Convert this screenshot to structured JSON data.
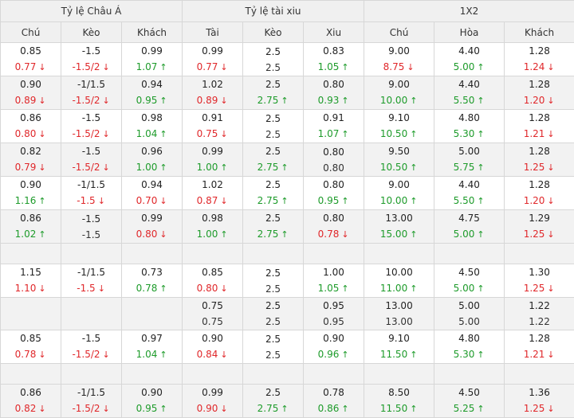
{
  "groups": [
    "Tỷ lệ Châu Á",
    "Tỷ lệ tài xiu",
    "1X2"
  ],
  "columns": [
    "Chú",
    "Kèo",
    "Khách",
    "Tài",
    "Kèo",
    "Xiu",
    "Chú",
    "Hòa",
    "Khách"
  ],
  "colors": {
    "up": "#1d9b2a",
    "down": "#e0272a",
    "neutral": "#333333",
    "header_bg": "#f0f0f0",
    "alt_row_bg": "#f2f2f2"
  },
  "rows": [
    {
      "type": "data",
      "cells": [
        {
          "open": "0.85",
          "cur": "0.77",
          "dir": "down"
        },
        {
          "open": "-1.5",
          "cur": "-1.5/2",
          "dir": "down"
        },
        {
          "open": "0.99",
          "cur": "1.07",
          "dir": "up"
        },
        {
          "open": "0.99",
          "cur": "0.77",
          "dir": "down"
        },
        {
          "open": "2.5",
          "cur": "2.5",
          "dir": "none"
        },
        {
          "open": "0.83",
          "cur": "1.05",
          "dir": "up"
        },
        {
          "open": "9.00",
          "cur": "8.75",
          "dir": "down"
        },
        {
          "open": "4.40",
          "cur": "5.00",
          "dir": "up"
        },
        {
          "open": "1.28",
          "cur": "1.24",
          "dir": "down"
        }
      ]
    },
    {
      "type": "data",
      "cells": [
        {
          "open": "0.90",
          "cur": "0.89",
          "dir": "down"
        },
        {
          "open": "-1/1.5",
          "cur": "-1.5/2",
          "dir": "down"
        },
        {
          "open": "0.94",
          "cur": "0.95",
          "dir": "up"
        },
        {
          "open": "1.02",
          "cur": "0.89",
          "dir": "down"
        },
        {
          "open": "2.5",
          "cur": "2.75",
          "dir": "up"
        },
        {
          "open": "0.80",
          "cur": "0.93",
          "dir": "up"
        },
        {
          "open": "9.00",
          "cur": "10.00",
          "dir": "up"
        },
        {
          "open": "4.40",
          "cur": "5.50",
          "dir": "up"
        },
        {
          "open": "1.28",
          "cur": "1.20",
          "dir": "down"
        }
      ]
    },
    {
      "type": "data",
      "cells": [
        {
          "open": "0.86",
          "cur": "0.80",
          "dir": "down"
        },
        {
          "open": "-1.5",
          "cur": "-1.5/2",
          "dir": "down"
        },
        {
          "open": "0.98",
          "cur": "1.04",
          "dir": "up"
        },
        {
          "open": "0.91",
          "cur": "0.75",
          "dir": "down"
        },
        {
          "open": "2.5",
          "cur": "2.5",
          "dir": "none"
        },
        {
          "open": "0.91",
          "cur": "1.07",
          "dir": "up"
        },
        {
          "open": "9.10",
          "cur": "10.50",
          "dir": "up"
        },
        {
          "open": "4.80",
          "cur": "5.30",
          "dir": "up"
        },
        {
          "open": "1.28",
          "cur": "1.21",
          "dir": "down"
        }
      ]
    },
    {
      "type": "data",
      "cells": [
        {
          "open": "0.82",
          "cur": "0.79",
          "dir": "down"
        },
        {
          "open": "-1.5",
          "cur": "-1.5/2",
          "dir": "down"
        },
        {
          "open": "0.96",
          "cur": "1.00",
          "dir": "up"
        },
        {
          "open": "0.99",
          "cur": "1.00",
          "dir": "up"
        },
        {
          "open": "2.5",
          "cur": "2.75",
          "dir": "up"
        },
        {
          "open": "0.80",
          "cur": "0.80",
          "dir": "none"
        },
        {
          "open": "9.50",
          "cur": "10.50",
          "dir": "up"
        },
        {
          "open": "5.00",
          "cur": "5.75",
          "dir": "up"
        },
        {
          "open": "1.28",
          "cur": "1.25",
          "dir": "down"
        }
      ]
    },
    {
      "type": "data",
      "cells": [
        {
          "open": "0.90",
          "cur": "1.16",
          "dir": "up"
        },
        {
          "open": "-1/1.5",
          "cur": "-1.5",
          "dir": "down"
        },
        {
          "open": "0.94",
          "cur": "0.70",
          "dir": "down"
        },
        {
          "open": "1.02",
          "cur": "0.87",
          "dir": "down"
        },
        {
          "open": "2.5",
          "cur": "2.75",
          "dir": "up"
        },
        {
          "open": "0.80",
          "cur": "0.95",
          "dir": "up"
        },
        {
          "open": "9.00",
          "cur": "10.00",
          "dir": "up"
        },
        {
          "open": "4.40",
          "cur": "5.50",
          "dir": "up"
        },
        {
          "open": "1.28",
          "cur": "1.20",
          "dir": "down"
        }
      ]
    },
    {
      "type": "data",
      "cells": [
        {
          "open": "0.86",
          "cur": "1.02",
          "dir": "up"
        },
        {
          "open": "-1.5",
          "cur": "-1.5",
          "dir": "none"
        },
        {
          "open": "0.99",
          "cur": "0.80",
          "dir": "down"
        },
        {
          "open": "0.98",
          "cur": "1.00",
          "dir": "up"
        },
        {
          "open": "2.5",
          "cur": "2.75",
          "dir": "up"
        },
        {
          "open": "0.80",
          "cur": "0.78",
          "dir": "down"
        },
        {
          "open": "13.00",
          "cur": "15.00",
          "dir": "up"
        },
        {
          "open": "4.75",
          "cur": "5.00",
          "dir": "up"
        },
        {
          "open": "1.29",
          "cur": "1.25",
          "dir": "down"
        }
      ]
    },
    {
      "type": "gap"
    },
    {
      "type": "data",
      "cells": [
        {
          "open": "1.15",
          "cur": "1.10",
          "dir": "down"
        },
        {
          "open": "-1/1.5",
          "cur": "-1.5",
          "dir": "down"
        },
        {
          "open": "0.73",
          "cur": "0.78",
          "dir": "up"
        },
        {
          "open": "0.85",
          "cur": "0.80",
          "dir": "down"
        },
        {
          "open": "2.5",
          "cur": "2.5",
          "dir": "none"
        },
        {
          "open": "1.00",
          "cur": "1.05",
          "dir": "up"
        },
        {
          "open": "10.00",
          "cur": "11.00",
          "dir": "up"
        },
        {
          "open": "4.50",
          "cur": "5.00",
          "dir": "up"
        },
        {
          "open": "1.30",
          "cur": "1.25",
          "dir": "down"
        }
      ]
    },
    {
      "type": "data",
      "cells": [
        null,
        null,
        null,
        {
          "open": "0.75",
          "cur": "0.75",
          "dir": "none"
        },
        {
          "open": "2.5",
          "cur": "2.5",
          "dir": "none"
        },
        {
          "open": "0.95",
          "cur": "0.95",
          "dir": "none"
        },
        {
          "open": "13.00",
          "cur": "13.00",
          "dir": "none"
        },
        {
          "open": "5.00",
          "cur": "5.00",
          "dir": "none"
        },
        {
          "open": "1.22",
          "cur": "1.22",
          "dir": "none"
        }
      ]
    },
    {
      "type": "data",
      "cells": [
        {
          "open": "0.85",
          "cur": "0.78",
          "dir": "down"
        },
        {
          "open": "-1.5",
          "cur": "-1.5/2",
          "dir": "down"
        },
        {
          "open": "0.97",
          "cur": "1.04",
          "dir": "up"
        },
        {
          "open": "0.90",
          "cur": "0.84",
          "dir": "down"
        },
        {
          "open": "2.5",
          "cur": "2.5",
          "dir": "none"
        },
        {
          "open": "0.90",
          "cur": "0.96",
          "dir": "up"
        },
        {
          "open": "9.10",
          "cur": "11.50",
          "dir": "up"
        },
        {
          "open": "4.80",
          "cur": "5.30",
          "dir": "up"
        },
        {
          "open": "1.28",
          "cur": "1.21",
          "dir": "down"
        }
      ]
    },
    {
      "type": "gap"
    },
    {
      "type": "data",
      "cells": [
        {
          "open": "0.86",
          "cur": "0.82",
          "dir": "down"
        },
        {
          "open": "-1/1.5",
          "cur": "-1.5/2",
          "dir": "down"
        },
        {
          "open": "0.90",
          "cur": "0.95",
          "dir": "up"
        },
        {
          "open": "0.99",
          "cur": "0.90",
          "dir": "down"
        },
        {
          "open": "2.5",
          "cur": "2.75",
          "dir": "up"
        },
        {
          "open": "0.78",
          "cur": "0.86",
          "dir": "up"
        },
        {
          "open": "8.50",
          "cur": "11.50",
          "dir": "up"
        },
        {
          "open": "4.50",
          "cur": "5.25",
          "dir": "up"
        },
        {
          "open": "1.36",
          "cur": "1.25",
          "dir": "down"
        }
      ]
    }
  ]
}
